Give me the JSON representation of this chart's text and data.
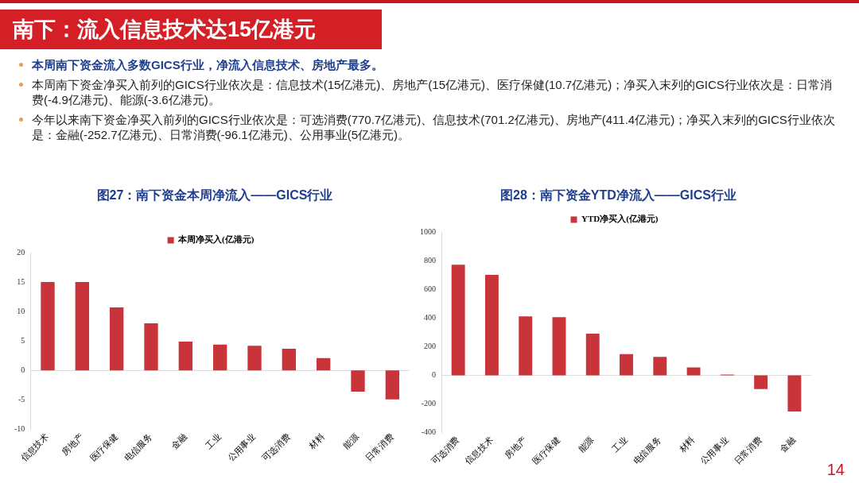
{
  "chart_data": [
    {
      "type": "bar",
      "title": "图27：南下资金本周净流入——GICS行业",
      "categories": [
        "信息技术",
        "房地产",
        "医疗保健",
        "电信服务",
        "金融",
        "工业",
        "公用事业",
        "可选消费",
        "材料",
        "能源",
        "日常消费"
      ],
      "series": [
        {
          "name": "本周净买入(亿港元)",
          "color": "#c9343a",
          "values": [
            15,
            15,
            10.7,
            8,
            4.9,
            4.4,
            4.2,
            3.7,
            2.1,
            -3.6,
            -4.9
          ]
        }
      ],
      "ylim": [
        -10,
        20
      ],
      "yticks": [
        -10,
        -5,
        0,
        5,
        10,
        15,
        20
      ],
      "legend": "top",
      "annotations": [
        "南下：流入信息技术达15亿港元",
        "本周南下资金流入多数GICS行业，净流入信息技术、房地产最多。",
        "本周南下资金净买入前列的GICS行业依次是：信息技术(15亿港元)、房地产(15亿港元)、医疗保健(10.7亿港元)；净买入末列的GICS行业依次是：日常消费(-4.9亿港元)、能源(-3.6亿港元)。",
        "今年以来南下资金净买入前列的GICS行业依次是：可选消费(770.7亿港元)、信息技术(701.2亿港元)、房地产(411.4亿港元)；净买入末列的GICS行业依次是：金融(-252.7亿港元)、日常消费(-96.1亿港元)、公用事业(5亿港元)。",
        "14"
      ]
    },
    {
      "type": "bar",
      "title": "图28：南下资金YTD净流入——GICS行业",
      "categories": [
        "可选消费",
        "信息技术",
        "房地产",
        "医疗保健",
        "能源",
        "工业",
        "电信服务",
        "材料",
        "公用事业",
        "日常消费",
        "金融"
      ],
      "series": [
        {
          "name": "YTD净买入(亿港元)",
          "color": "#c9343a",
          "values": [
            770.7,
            701.2,
            411.4,
            405,
            290,
            148,
            128,
            55,
            5,
            -96.1,
            -252.7
          ]
        }
      ],
      "ylim": [
        -400,
        1000
      ],
      "yticks": [
        -400,
        -200,
        0,
        200,
        400,
        600,
        800,
        1000
      ],
      "legend": "top"
    }
  ]
}
